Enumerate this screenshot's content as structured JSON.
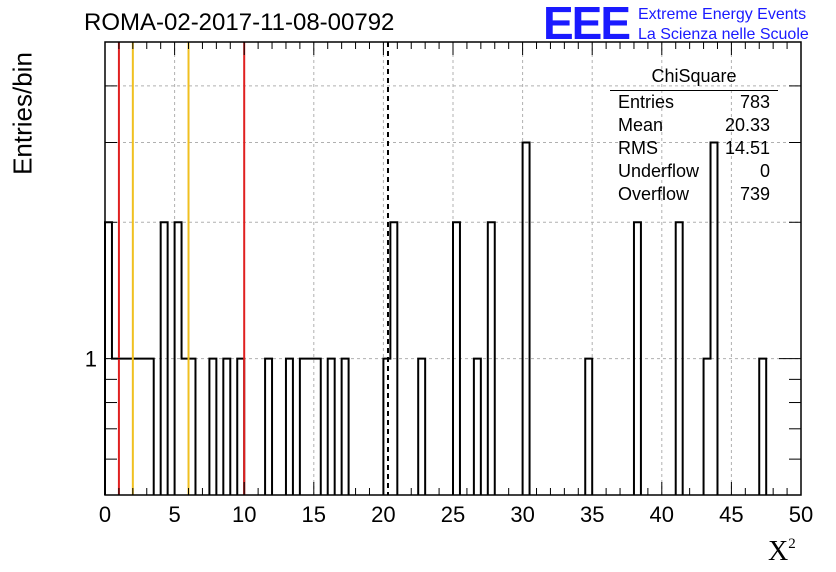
{
  "header": {
    "title": "ROMA-02-2017-11-08-00792"
  },
  "brand": {
    "logo_text": "EEE",
    "line1": "Extreme Energy Events",
    "line2": "La Scienza nelle Scuole",
    "color": "#1a1aff"
  },
  "stats_box": {
    "title": "ChiSquare",
    "rows": [
      {
        "key": "Entries",
        "value": "783"
      },
      {
        "key": "Mean",
        "value": "20.33"
      },
      {
        "key": "RMS",
        "value": "14.51"
      },
      {
        "key": "Underflow",
        "value": "0"
      },
      {
        "key": "Overflow",
        "value": "739"
      }
    ]
  },
  "chart_data": {
    "type": "bar",
    "histogram": true,
    "xlabel": "X",
    "xlabel_sup": "2",
    "ylabel": "Entries/bin",
    "xlim": [
      0,
      50
    ],
    "ylim": [
      0.5,
      5
    ],
    "yscale": "log",
    "bin_width": 0.5,
    "x_ticks": [
      0,
      5,
      10,
      15,
      20,
      25,
      30,
      35,
      40,
      45,
      50
    ],
    "y_tick_labels": [
      {
        "value": 1,
        "label": "1"
      }
    ],
    "grid": true,
    "bars": [
      {
        "x0": 0.0,
        "x1": 0.5,
        "value": 2
      },
      {
        "x0": 0.5,
        "x1": 3.5,
        "value": 1
      },
      {
        "x0": 4.0,
        "x1": 4.5,
        "value": 2
      },
      {
        "x0": 5.0,
        "x1": 5.5,
        "value": 2
      },
      {
        "x0": 5.5,
        "x1": 6.5,
        "value": 1
      },
      {
        "x0": 7.5,
        "x1": 8.0,
        "value": 1
      },
      {
        "x0": 8.5,
        "x1": 9.0,
        "value": 1
      },
      {
        "x0": 9.5,
        "x1": 10.0,
        "value": 1
      },
      {
        "x0": 11.5,
        "x1": 12.0,
        "value": 1
      },
      {
        "x0": 13.0,
        "x1": 13.5,
        "value": 1
      },
      {
        "x0": 14.0,
        "x1": 15.5,
        "value": 1
      },
      {
        "x0": 16.0,
        "x1": 16.5,
        "value": 1
      },
      {
        "x0": 17.0,
        "x1": 17.5,
        "value": 1
      },
      {
        "x0": 20.0,
        "x1": 20.5,
        "value": 1
      },
      {
        "x0": 20.5,
        "x1": 21.0,
        "value": 2
      },
      {
        "x0": 22.5,
        "x1": 23.0,
        "value": 1
      },
      {
        "x0": 25.0,
        "x1": 25.5,
        "value": 2
      },
      {
        "x0": 26.5,
        "x1": 27.0,
        "value": 1
      },
      {
        "x0": 27.5,
        "x1": 28.0,
        "value": 2
      },
      {
        "x0": 30.0,
        "x1": 30.5,
        "value": 3
      },
      {
        "x0": 34.5,
        "x1": 35.0,
        "value": 1
      },
      {
        "x0": 38.0,
        "x1": 38.5,
        "value": 2
      },
      {
        "x0": 41.0,
        "x1": 41.5,
        "value": 2
      },
      {
        "x0": 43.0,
        "x1": 43.5,
        "value": 1
      },
      {
        "x0": 43.5,
        "x1": 44.0,
        "value": 3
      },
      {
        "x0": 47.0,
        "x1": 47.5,
        "value": 1
      }
    ],
    "reference_lines": [
      {
        "x": 1,
        "color": "#e02020",
        "style": "solid"
      },
      {
        "x": 2,
        "color": "#f0c020",
        "style": "solid"
      },
      {
        "x": 6,
        "color": "#f0c020",
        "style": "solid"
      },
      {
        "x": 10,
        "color": "#e02020",
        "style": "solid"
      },
      {
        "x": 20.33,
        "color": "#000000",
        "style": "dashed"
      }
    ],
    "colors": {
      "histogram": "#000000",
      "grid": "#b0b0b0"
    }
  }
}
